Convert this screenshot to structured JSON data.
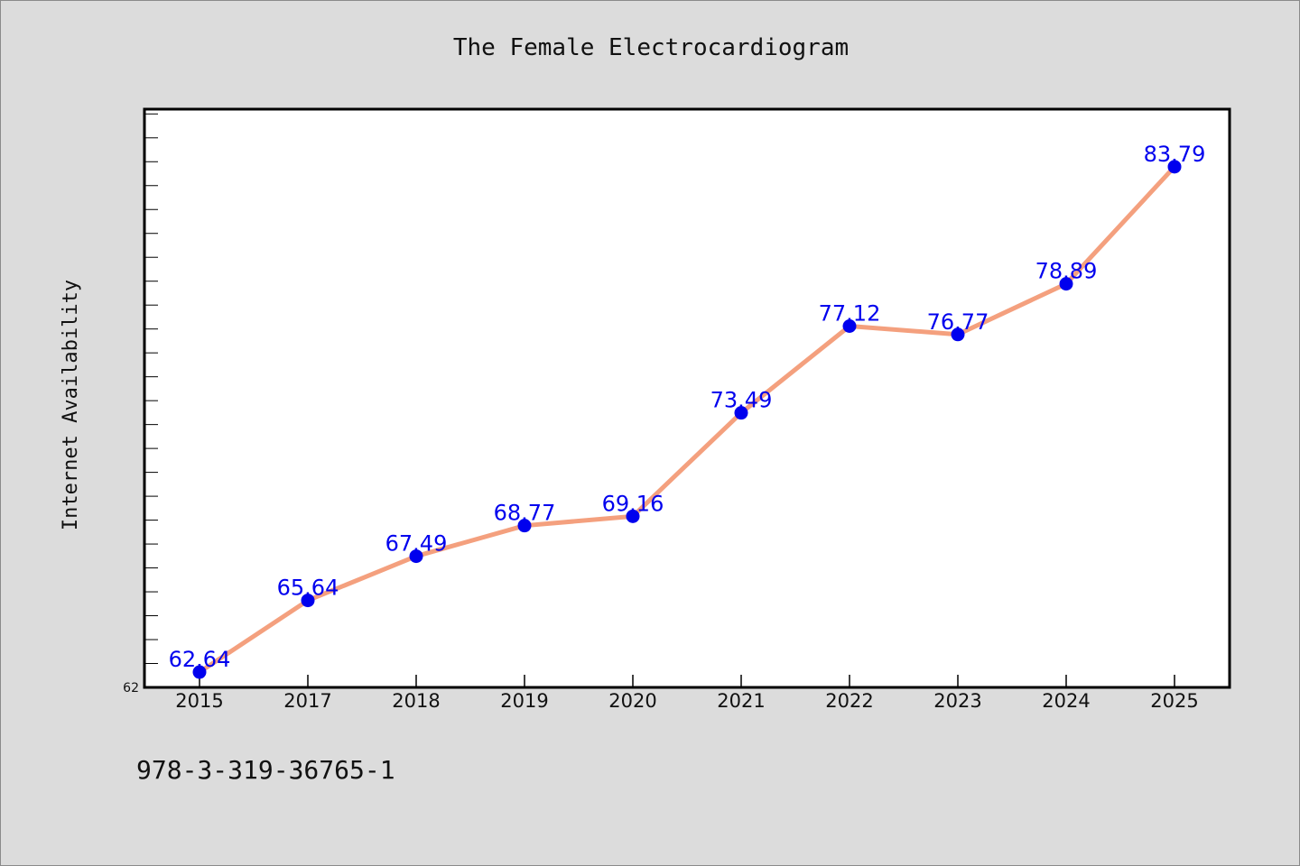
{
  "chart_data": {
    "type": "line",
    "title": "The Female Electrocardiogram",
    "xlabel": "",
    "ylabel": "Internet Availability",
    "categories": [
      "2015",
      "2017",
      "2018",
      "2019",
      "2020",
      "2021",
      "2022",
      "2023",
      "2024",
      "2025"
    ],
    "series": [
      {
        "values": [
          62.64,
          65.64,
          67.49,
          68.77,
          69.16,
          73.49,
          77.12,
          76.77,
          78.89,
          83.79
        ],
        "labels": [
          "62.64",
          "65.64",
          "67.49",
          "68.77",
          "69.16",
          "73.49",
          "77.12",
          "76.77",
          "78.89",
          "83.79"
        ]
      }
    ],
    "ylim": [
      62,
      86.2
    ],
    "ytick_labels": [
      "62"
    ],
    "grid": false,
    "legend": "none",
    "colors": {
      "line": "#f4a07e",
      "marker": "#0000ee",
      "data_label": "#0000ee",
      "plot_background": "#ffffff",
      "figure_background": "#dcdcdc"
    }
  },
  "footer": {
    "isbn": "978-3-319-36765-1"
  }
}
